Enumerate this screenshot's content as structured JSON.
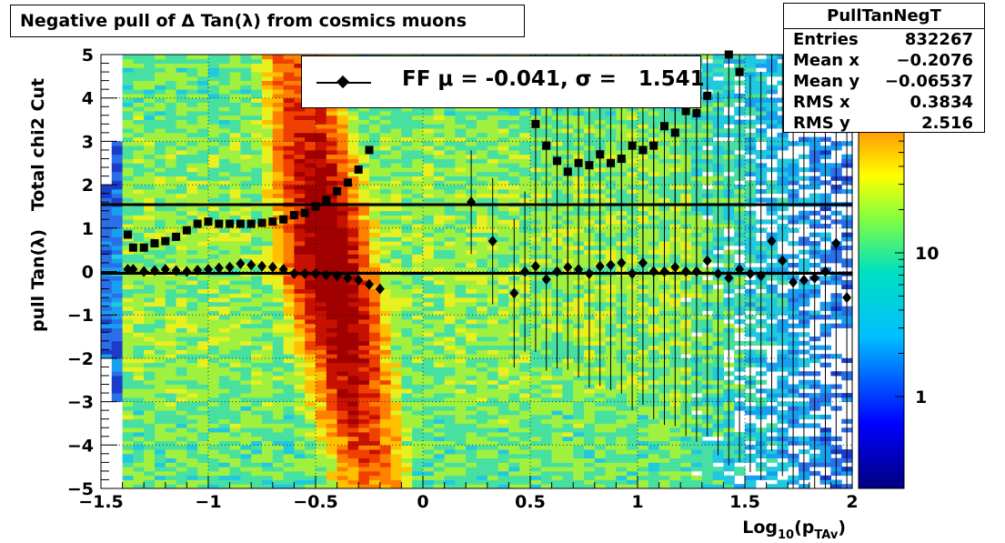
{
  "title": "Negative pull of Δ Tan(λ) from cosmics muons",
  "stats": {
    "name": "PullTanNegT",
    "rows": [
      {
        "label": "Entries",
        "value": "832267"
      },
      {
        "label": "Mean x",
        "value": "−0.2076"
      },
      {
        "label": "Mean y",
        "value": "−0.06537"
      },
      {
        "label": "RMS x",
        "value": "0.3834"
      },
      {
        "label": "RMS y",
        "value": "2.516"
      }
    ]
  },
  "legend": {
    "entry": "FF μ = -0.041, σ =   1.541"
  },
  "colorbar": {
    "tick_labels": [
      "1",
      "10"
    ]
  },
  "chart_data": {
    "type": "heatmap",
    "title": "Negative pull of Δ Tan(λ) from cosmics muons",
    "xlabel": "Log10(pTAv)",
    "ylabel": "pull Tan(λ)   Total chi2 Cut",
    "xlim": [
      -1.5,
      2
    ],
    "ylim": [
      -5,
      5
    ],
    "x_ticks": [
      "−1.5",
      "−1",
      "−0.5",
      "0",
      "0.5",
      "1",
      "1.5",
      "2"
    ],
    "y_ticks": [
      "−5",
      "−4",
      "−3",
      "−2",
      "−1",
      "0",
      "1",
      "2",
      "3",
      "4",
      "5"
    ],
    "grid": true,
    "color_scale": "log",
    "fit_lines": [
      {
        "y": 1.541
      },
      {
        "y": -0.041
      }
    ],
    "series": [
      {
        "name": "FF μ",
        "marker": "diamond",
        "x": [
          -1.375,
          -1.35,
          -1.3,
          -1.25,
          -1.2,
          -1.15,
          -1.1,
          -1.05,
          -1.0,
          -0.95,
          -0.9,
          -0.85,
          -0.8,
          -0.75,
          -0.7,
          -0.65,
          -0.6,
          -0.55,
          -0.5,
          -0.45,
          -0.4,
          -0.35,
          -0.3,
          -0.25,
          -0.2,
          0.225,
          0.325,
          0.425,
          0.475,
          0.525,
          0.575,
          0.625,
          0.675,
          0.725,
          0.775,
          0.825,
          0.875,
          0.925,
          0.975,
          1.025,
          1.075,
          1.125,
          1.175,
          1.225,
          1.275,
          1.325,
          1.375,
          1.425,
          1.475,
          1.525,
          1.575,
          1.625,
          1.675,
          1.725,
          1.775,
          1.825,
          1.875,
          1.925,
          1.975
        ],
        "y": [
          0.05,
          0.05,
          0.0,
          0.02,
          0.05,
          0.02,
          0.0,
          0.03,
          0.05,
          0.08,
          0.1,
          0.18,
          0.15,
          0.12,
          0.1,
          0.05,
          -0.05,
          -0.05,
          -0.05,
          -0.08,
          -0.1,
          -0.15,
          -0.2,
          -0.3,
          -0.4,
          1.6,
          0.7,
          -0.5,
          0.0,
          0.12,
          -0.18,
          0.0,
          0.1,
          0.05,
          -0.05,
          0.12,
          0.15,
          0.2,
          -0.05,
          0.2,
          0.0,
          0.0,
          0.1,
          0.0,
          0.0,
          0.25,
          -0.05,
          -0.15,
          0.05,
          -0.05,
          -0.1,
          0.7,
          0.25,
          -0.25,
          -0.2,
          -0.15,
          0.0,
          0.65,
          -0.6
        ]
      },
      {
        "name": "FF σ",
        "marker": "square",
        "x": [
          -1.375,
          -1.35,
          -1.3,
          -1.25,
          -1.2,
          -1.15,
          -1.1,
          -1.05,
          -1.0,
          -0.95,
          -0.9,
          -0.85,
          -0.8,
          -0.75,
          -0.7,
          -0.65,
          -0.6,
          -0.55,
          -0.5,
          -0.45,
          -0.4,
          -0.35,
          -0.3,
          -0.25,
          0.525,
          0.575,
          0.625,
          0.675,
          0.725,
          0.775,
          0.825,
          0.875,
          0.925,
          0.975,
          1.025,
          1.075,
          1.125,
          1.175,
          1.225,
          1.275,
          1.325,
          1.425,
          1.475
        ],
        "y": [
          0.85,
          0.55,
          0.55,
          0.65,
          0.7,
          0.8,
          0.95,
          1.1,
          1.15,
          1.1,
          1.1,
          1.1,
          1.1,
          1.12,
          1.15,
          1.2,
          1.3,
          1.35,
          1.5,
          1.65,
          1.85,
          2.05,
          2.35,
          2.8,
          3.4,
          2.9,
          2.55,
          2.3,
          2.5,
          2.45,
          2.7,
          2.5,
          2.6,
          2.9,
          2.8,
          2.9,
          3.35,
          3.2,
          3.7,
          3.65,
          4.05,
          5.0,
          4.6
        ]
      }
    ]
  }
}
